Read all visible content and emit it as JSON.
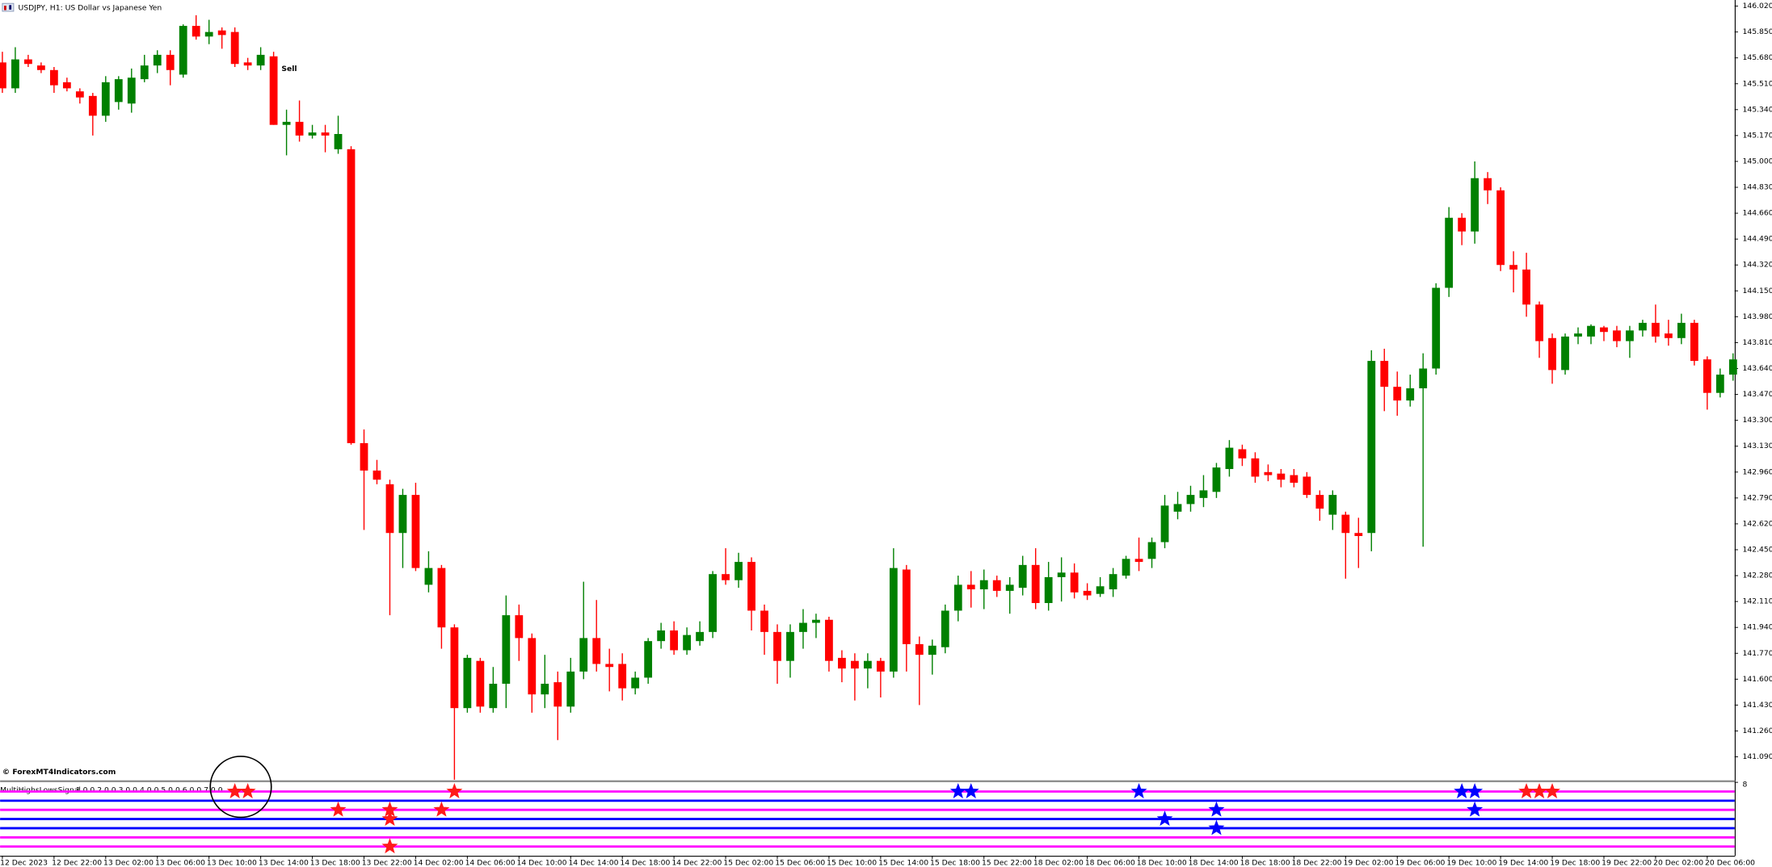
{
  "chart_data": [
    {
      "type": "candlestick",
      "title": "USDJPY, H1:  US Dollar vs Japanese Yen",
      "annotation": "Sell",
      "watermark": "© ForexMT4Indicators.com",
      "up_color": "#008000",
      "down_color": "#ff0000",
      "ylim": [
        140.93,
        146.06
      ],
      "yticks": [
        {
          "value": 146.02,
          "label": "146.020"
        },
        {
          "value": 145.85,
          "label": "145.850"
        },
        {
          "value": 145.68,
          "label": "145.680"
        },
        {
          "value": 145.51,
          "label": "145.510"
        },
        {
          "value": 145.34,
          "label": "145.340"
        },
        {
          "value": 145.17,
          "label": "145.170"
        },
        {
          "value": 145.0,
          "label": "145.000"
        },
        {
          "value": 144.83,
          "label": "144.830"
        },
        {
          "value": 144.66,
          "label": "144.660"
        },
        {
          "value": 144.49,
          "label": "144.490"
        },
        {
          "value": 144.32,
          "label": "144.320"
        },
        {
          "value": 144.15,
          "label": "144.150"
        },
        {
          "value": 143.98,
          "label": "143.980"
        },
        {
          "value": 143.81,
          "label": "143.810"
        },
        {
          "value": 143.64,
          "label": "143.640"
        },
        {
          "value": 143.47,
          "label": "143.470"
        },
        {
          "value": 143.3,
          "label": "143.300"
        },
        {
          "value": 143.13,
          "label": "143.130"
        },
        {
          "value": 142.96,
          "label": "142.960"
        },
        {
          "value": 142.79,
          "label": "142.790"
        },
        {
          "value": 142.62,
          "label": "142.620"
        },
        {
          "value": 142.45,
          "label": "142.450"
        },
        {
          "value": 142.28,
          "label": "142.280"
        },
        {
          "value": 142.11,
          "label": "142.110"
        },
        {
          "value": 141.94,
          "label": "141.940"
        },
        {
          "value": 141.77,
          "label": "141.770"
        },
        {
          "value": 141.6,
          "label": "141.600"
        },
        {
          "value": 141.43,
          "label": "141.430"
        },
        {
          "value": 141.26,
          "label": "141.260"
        },
        {
          "value": 141.09,
          "label": "141.090"
        }
      ],
      "categories": [
        "12 Dec 2023",
        null,
        null,
        null,
        "12 Dec 22:00",
        null,
        null,
        null,
        "13 Dec 02:00",
        null,
        null,
        null,
        "13 Dec 06:00",
        null,
        null,
        null,
        "13 Dec 10:00",
        null,
        null,
        null,
        "13 Dec 14:00",
        null,
        null,
        null,
        "13 Dec 18:00",
        null,
        null,
        null,
        "13 Dec 22:00",
        null,
        null,
        null,
        "14 Dec 02:00",
        null,
        null,
        null,
        "14 Dec 06:00",
        null,
        null,
        null,
        "14 Dec 10:00",
        null,
        null,
        null,
        "14 Dec 14:00",
        null,
        null,
        null,
        "14 Dec 18:00",
        null,
        null,
        null,
        "14 Dec 22:00",
        null,
        null,
        null,
        "15 Dec 02:00",
        null,
        null,
        null,
        "15 Dec 06:00",
        null,
        null,
        null,
        "15 Dec 10:00",
        null,
        null,
        null,
        "15 Dec 14:00",
        null,
        null,
        null,
        "15 Dec 18:00",
        null,
        null,
        null,
        "15 Dec 22:00",
        null,
        null,
        null,
        "18 Dec 02:00",
        null,
        null,
        null,
        "18 Dec 06:00",
        null,
        null,
        null,
        "18 Dec 10:00",
        null,
        null,
        null,
        "18 Dec 14:00",
        null,
        null,
        null,
        "18 Dec 18:00",
        null,
        null,
        null,
        "18 Dec 22:00",
        null,
        null,
        null,
        "19 Dec 02:00",
        null,
        null,
        null,
        "19 Dec 06:00",
        null,
        null,
        null,
        "19 Dec 10:00",
        null,
        null,
        null,
        "19 Dec 14:00",
        null,
        null,
        null,
        "19 Dec 18:00",
        null,
        null,
        null,
        "19 Dec 22:00",
        null,
        null,
        null,
        "20 Dec 02:00",
        null,
        null,
        null,
        "20 Dec 06:00",
        null,
        null
      ],
      "open": [
        145.65,
        145.48,
        145.67,
        145.63,
        145.6,
        145.52,
        145.46,
        145.43,
        145.3,
        145.39,
        145.38,
        145.54,
        145.63,
        145.7,
        145.57,
        145.89,
        145.82,
        145.86,
        145.85,
        145.65,
        145.63,
        145.69,
        145.24,
        145.26,
        145.17,
        145.19,
        145.08,
        145.08,
        143.15,
        142.97,
        142.88,
        142.56,
        142.81,
        142.22,
        142.33,
        141.94,
        141.41,
        141.72,
        141.41,
        141.57,
        142.02,
        141.87,
        141.5,
        141.58,
        141.42,
        141.65,
        141.87,
        141.7,
        141.7,
        141.54,
        141.61,
        141.85,
        141.92,
        141.79,
        141.85,
        141.91,
        142.29,
        142.25,
        142.37,
        142.05,
        141.91,
        141.72,
        141.91,
        141.97,
        141.99,
        141.74,
        141.72,
        141.67,
        141.72,
        141.65,
        142.32,
        141.83,
        141.76,
        141.81,
        142.05,
        142.22,
        142.19,
        142.25,
        142.18,
        142.2,
        142.35,
        142.1,
        142.27,
        142.3,
        142.18,
        142.16,
        142.19,
        142.28,
        142.39,
        142.39,
        142.5,
        142.7,
        142.75,
        142.79,
        142.83,
        142.98,
        143.11,
        143.05,
        142.96,
        142.95,
        142.94,
        142.93,
        142.81,
        142.68,
        142.68,
        142.56,
        142.56,
        143.69,
        143.52,
        143.43,
        143.51,
        143.64,
        144.17,
        144.63,
        144.54,
        144.89,
        144.81,
        144.32,
        144.29,
        144.06,
        143.84,
        143.63,
        143.85,
        143.85,
        143.91,
        143.89,
        143.82,
        143.89,
        143.94,
        143.87,
        143.84,
        143.94,
        143.7,
        143.48,
        143.6
      ],
      "high": [
        145.72,
        145.75,
        145.7,
        145.65,
        145.62,
        145.55,
        145.48,
        145.45,
        145.56,
        145.56,
        145.61,
        145.7,
        145.73,
        145.73,
        145.9,
        145.96,
        145.93,
        145.88,
        145.88,
        145.68,
        145.75,
        145.72,
        145.34,
        145.4,
        145.24,
        145.24,
        145.3,
        145.1,
        143.24,
        143.04,
        142.91,
        142.85,
        142.89,
        142.44,
        142.35,
        141.96,
        141.76,
        141.74,
        141.68,
        142.15,
        142.09,
        141.9,
        141.76,
        141.65,
        141.74,
        142.24,
        142.12,
        141.8,
        141.77,
        141.65,
        141.87,
        141.97,
        141.98,
        141.94,
        141.98,
        142.31,
        142.46,
        142.43,
        142.4,
        142.09,
        141.96,
        141.96,
        142.06,
        142.03,
        142.01,
        141.79,
        141.77,
        141.77,
        141.74,
        142.46,
        142.35,
        141.88,
        141.86,
        142.09,
        142.28,
        142.31,
        142.32,
        142.28,
        142.27,
        142.41,
        142.46,
        142.37,
        142.4,
        142.36,
        142.23,
        142.27,
        142.33,
        142.41,
        142.53,
        142.53,
        142.81,
        142.83,
        142.87,
        142.94,
        143.02,
        143.17,
        143.14,
        143.09,
        143.01,
        142.98,
        142.98,
        142.96,
        142.84,
        142.84,
        142.7,
        142.66,
        143.76,
        143.77,
        143.62,
        143.6,
        143.74,
        144.2,
        144.7,
        144.66,
        145.0,
        144.93,
        144.83,
        144.41,
        144.4,
        144.08,
        143.87,
        143.87,
        143.91,
        143.93,
        143.92,
        143.92,
        143.92,
        143.96,
        144.06,
        143.96,
        144.0,
        143.96,
        143.72,
        143.64,
        143.74
      ],
      "low": [
        145.45,
        145.45,
        145.62,
        145.58,
        145.45,
        145.46,
        145.38,
        145.17,
        145.26,
        145.34,
        145.32,
        145.52,
        145.58,
        145.5,
        145.55,
        145.8,
        145.77,
        145.74,
        145.62,
        145.6,
        145.6,
        145.24,
        145.04,
        145.13,
        145.15,
        145.06,
        145.05,
        143.14,
        142.58,
        142.88,
        142.02,
        142.33,
        142.31,
        142.17,
        141.8,
        140.94,
        141.38,
        141.38,
        141.38,
        141.41,
        141.72,
        141.38,
        141.41,
        141.2,
        141.38,
        141.6,
        141.65,
        141.52,
        141.46,
        141.5,
        141.57,
        141.8,
        141.76,
        141.76,
        141.82,
        141.87,
        142.22,
        142.2,
        141.92,
        141.76,
        141.57,
        141.61,
        141.8,
        141.87,
        141.65,
        141.58,
        141.46,
        141.54,
        141.48,
        141.61,
        141.65,
        141.43,
        141.63,
        141.77,
        141.98,
        142.07,
        142.06,
        142.14,
        142.03,
        142.15,
        142.06,
        142.05,
        142.11,
        142.13,
        142.12,
        142.14,
        142.14,
        142.26,
        142.31,
        142.33,
        142.46,
        142.65,
        142.7,
        142.73,
        142.79,
        142.93,
        143.0,
        142.89,
        142.9,
        142.86,
        142.86,
        142.79,
        142.64,
        142.58,
        142.26,
        142.33,
        142.44,
        143.36,
        143.33,
        143.39,
        142.47,
        143.6,
        144.11,
        144.45,
        144.46,
        144.72,
        144.28,
        144.14,
        143.98,
        143.71,
        143.54,
        143.6,
        143.8,
        143.8,
        143.82,
        143.78,
        143.71,
        143.85,
        143.81,
        143.79,
        143.8,
        143.66,
        143.37,
        143.45,
        143.56
      ],
      "close": [
        145.48,
        145.67,
        145.64,
        145.6,
        145.5,
        145.48,
        145.42,
        145.3,
        145.52,
        145.54,
        145.55,
        145.63,
        145.7,
        145.6,
        145.89,
        145.82,
        145.85,
        145.83,
        145.64,
        145.63,
        145.7,
        145.24,
        145.26,
        145.17,
        145.19,
        145.17,
        145.18,
        143.15,
        142.97,
        142.91,
        142.56,
        142.81,
        142.33,
        142.33,
        141.94,
        141.41,
        141.74,
        141.42,
        141.57,
        142.02,
        141.87,
        141.5,
        141.57,
        141.42,
        141.65,
        141.87,
        141.7,
        141.68,
        141.54,
        141.61,
        141.85,
        141.92,
        141.79,
        141.89,
        141.91,
        142.29,
        142.25,
        142.37,
        142.05,
        141.91,
        141.72,
        141.91,
        141.97,
        141.99,
        141.72,
        141.67,
        141.67,
        141.72,
        141.65,
        142.33,
        141.83,
        141.76,
        141.82,
        142.05,
        142.22,
        142.19,
        142.25,
        142.18,
        142.22,
        142.35,
        142.1,
        142.27,
        142.3,
        142.17,
        142.15,
        142.21,
        142.29,
        142.39,
        142.37,
        142.5,
        142.74,
        142.75,
        142.81,
        142.84,
        142.99,
        143.12,
        143.05,
        142.93,
        142.94,
        142.91,
        142.89,
        142.81,
        142.72,
        142.81,
        142.56,
        142.54,
        143.69,
        143.52,
        143.43,
        143.51,
        143.64,
        144.17,
        144.63,
        144.54,
        144.89,
        144.81,
        144.32,
        144.29,
        144.06,
        143.82,
        143.63,
        143.85,
        143.87,
        143.92,
        143.88,
        143.82,
        143.89,
        143.94,
        143.85,
        143.84,
        143.94,
        143.69,
        143.48,
        143.6,
        143.7
      ]
    },
    {
      "type": "signals",
      "name": "MultiHighsLowsSignal",
      "buffers": "1 0 0 2 0 0 3 0 0 4 0 0 5 0 0 6 0 0 7 0 0",
      "ylim": [
        0,
        8
      ],
      "yticks": [
        8
      ],
      "levels": [
        7,
        6,
        5,
        4,
        3,
        2,
        1
      ],
      "level_colors": [
        "#ff00ff",
        "#0000ff",
        "#ff00ff",
        "#0000ff",
        "#0000ff",
        "#ff00ff",
        "#ff00ff"
      ],
      "series": [
        {
          "color": "#ff1a1a",
          "x": [
            18,
            19,
            26,
            30,
            30,
            30,
            34,
            35,
            118,
            119,
            120
          ],
          "values": [
            7,
            7,
            5,
            5,
            4,
            1,
            5,
            7,
            7,
            7,
            7
          ]
        },
        {
          "color": "#0000ff",
          "x": [
            74,
            75,
            88,
            90,
            94,
            94,
            113,
            114,
            114
          ],
          "values": [
            7,
            7,
            7,
            4,
            5,
            3,
            7,
            7,
            5
          ]
        }
      ]
    }
  ]
}
